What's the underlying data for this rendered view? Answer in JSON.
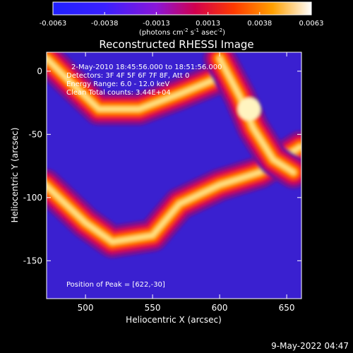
{
  "chart_data": {
    "type": "heatmap",
    "title": "Reconstructed RHESSI Image",
    "xlabel": "Heliocentric X (arcsec)",
    "ylabel": "Heliocentric Y (arcsec)",
    "xlim": [
      471,
      661
    ],
    "ylim": [
      -180,
      15
    ],
    "xticks": [
      500,
      550,
      600,
      650
    ],
    "yticks": [
      0,
      -50,
      -100,
      -150
    ],
    "colorbar": {
      "ticks": [
        "-0.0063",
        "-0.0038",
        "-0.0013",
        "0.0013",
        "0.0038",
        "0.0063"
      ],
      "range": [
        -0.0063,
        0.0063
      ],
      "unit_parts": {
        "open": "(photons cm",
        "exp1": "-2",
        "mid1": " s",
        "exp2": "-1",
        "mid2": " asec",
        "exp3": "-2",
        "close": ")"
      },
      "colors": [
        "#000000",
        "#2020ff",
        "#8a16d8",
        "#d1004e",
        "#ff3a00",
        "#ffa000",
        "#ffffff"
      ]
    },
    "annotations": [
      "2-May-2010 18:45:56.000 to 18:51:56.000",
      "Detectors: 3F 4F 5F 6F 7F 8F, Att 0",
      "Energy Range: 6.0 - 12.0 keV",
      "Clean     Total counts: 3.44E+04"
    ],
    "peak_label": "Position of Peak = [622,-30]",
    "peak": [
      622,
      -30
    ],
    "bright_ridges": [
      {
        "name": "upper",
        "points": [
          [
            471,
            10
          ],
          [
            490,
            -10
          ],
          [
            510,
            -30
          ],
          [
            540,
            -30
          ],
          [
            570,
            -18
          ],
          [
            600,
            -5
          ]
        ]
      },
      {
        "name": "lower",
        "points": [
          [
            470,
            -90
          ],
          [
            500,
            -120
          ],
          [
            520,
            -135
          ],
          [
            550,
            -130
          ],
          [
            570,
            -105
          ],
          [
            600,
            -90
          ],
          [
            630,
            -80
          ],
          [
            660,
            -60
          ]
        ]
      },
      {
        "name": "right",
        "points": [
          [
            600,
            10
          ],
          [
            615,
            -20
          ],
          [
            625,
            -45
          ],
          [
            640,
            -70
          ],
          [
            655,
            -80
          ]
        ]
      }
    ],
    "timestamp": "9-May-2022 04:47"
  }
}
